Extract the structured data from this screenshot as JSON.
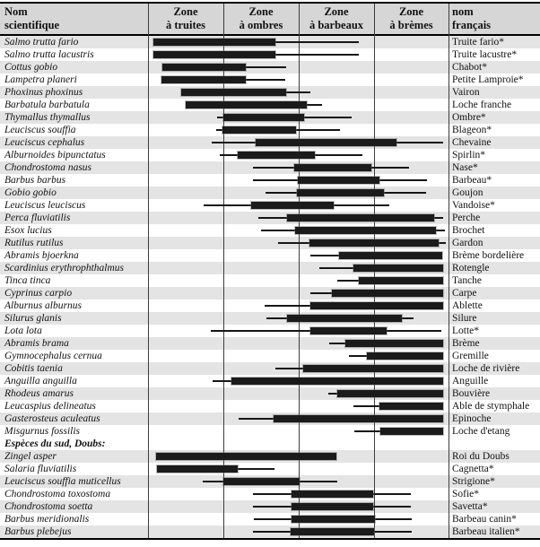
{
  "header": {
    "scientific": {
      "line1": "Nom",
      "line2": "scientifique"
    },
    "zones": [
      {
        "line1": "Zone",
        "line2": "à truites"
      },
      {
        "line1": "Zone",
        "line2": "à ombres"
      },
      {
        "line1": "Zone",
        "line2": "à barbeaux"
      },
      {
        "line1": "Zone",
        "line2": "à brèmes"
      }
    ],
    "french": {
      "line1": "nom",
      "line2": "français"
    }
  },
  "colors": {
    "row_shade": "#e4e4e4",
    "header_bg": "#d6d6d6",
    "bar": "#1b1b1b",
    "gridline": "#3d3d3d"
  },
  "chart_data": {
    "type": "bar",
    "subtype": "horizontal-range-bars-with-whiskers",
    "title": "",
    "xlabel": "",
    "ylabel": "",
    "categories": [
      "Zone à truites",
      "Zone à ombres",
      "Zone à barbeaux",
      "Zone à brèmes"
    ],
    "x_axis": {
      "min": 0,
      "max": 4,
      "units": "zone units: 0 = start of Zone à truites, 1 zone = 1 unit"
    },
    "legend": "none",
    "grid": "vertical zone-boundary lines at 0,1,2,3,4",
    "rows": [
      {
        "sci": "Salmo trutta fario",
        "fr": "Truite fario*",
        "whisker": [
          0.07,
          2.81
        ],
        "bar": [
          0.07,
          1.7
        ]
      },
      {
        "sci": "Salmo trutta lacustris",
        "fr": "Truite lacustre*",
        "whisker": [
          0.07,
          2.81
        ],
        "bar": [
          0.07,
          1.7
        ]
      },
      {
        "sci": "Cottus gobio",
        "fr": "Chabot*",
        "whisker": [
          0.19,
          1.84
        ],
        "bar": [
          0.19,
          1.3
        ]
      },
      {
        "sci": "Lampetra planeri",
        "fr": "Petite Lamproie*",
        "whisker": [
          0.18,
          1.83
        ],
        "bar": [
          0.18,
          1.3
        ]
      },
      {
        "sci": "Phoxinus phoxinus",
        "fr": "Vairon",
        "whisker": [
          0.44,
          2.16
        ],
        "bar": [
          0.44,
          1.84
        ]
      },
      {
        "sci": "Barbatula barbatula",
        "fr": "Loche franche",
        "whisker": [
          0.5,
          2.32
        ],
        "bar": [
          0.5,
          2.11
        ]
      },
      {
        "sci": "Thymallus thymallus",
        "fr": "Ombre*",
        "whisker": [
          0.92,
          2.71
        ],
        "bar": [
          1.0,
          2.08
        ]
      },
      {
        "sci": "Leuciscus souffia",
        "fr": "Blageon*",
        "whisker": [
          0.91,
          2.56
        ],
        "bar": [
          0.99,
          1.97
        ]
      },
      {
        "sci": "Leuciscus cephalus",
        "fr": "Chevaine",
        "whisker": [
          0.85,
          3.93
        ],
        "bar": [
          1.43,
          3.31
        ]
      },
      {
        "sci": "Alburnoides bipunctatus",
        "fr": "Spirlin*",
        "whisker": [
          0.96,
          2.85
        ],
        "bar": [
          1.19,
          2.22
        ]
      },
      {
        "sci": "Chondrostoma nasus",
        "fr": "Nase*",
        "whisker": [
          1.4,
          3.48
        ],
        "bar": [
          1.95,
          2.97
        ]
      },
      {
        "sci": "Barbus barbus",
        "fr": "Barbeau*",
        "whisker": [
          1.4,
          3.71
        ],
        "bar": [
          1.99,
          3.08
        ]
      },
      {
        "sci": "Gobio gobio",
        "fr": "Goujon",
        "whisker": [
          1.56,
          3.7
        ],
        "bar": [
          1.98,
          3.14
        ]
      },
      {
        "sci": "Leuciscus leuciscus",
        "fr": "Vandoise*",
        "whisker": [
          0.74,
          3.21
        ],
        "bar": [
          1.37,
          2.47
        ]
      },
      {
        "sci": "Perca fluviatilis",
        "fr": "Perche",
        "whisker": [
          1.47,
          3.93
        ],
        "bar": [
          1.85,
          3.81
        ]
      },
      {
        "sci": "Esox lucius",
        "fr": "Brochet",
        "whisker": [
          1.5,
          3.95
        ],
        "bar": [
          1.96,
          3.84
        ]
      },
      {
        "sci": "Rutilus rutilus",
        "fr": "Gardon",
        "whisker": [
          1.73,
          3.96
        ],
        "bar": [
          2.15,
          3.87
        ]
      },
      {
        "sci": "Abramis bjoerkna",
        "fr": "Brème bordelière",
        "whisker": [
          2.16,
          3.92
        ],
        "bar": [
          2.54,
          3.92
        ]
      },
      {
        "sci": "Scardinius erythrophthalmus",
        "fr": "Rotengle",
        "whisker": [
          2.28,
          3.93
        ],
        "bar": [
          2.73,
          3.93
        ]
      },
      {
        "sci": "Tinca tinca",
        "fr": "Tanche",
        "whisker": [
          2.52,
          3.93
        ],
        "bar": [
          2.81,
          3.93
        ]
      },
      {
        "sci": "Cyprinus carpio",
        "fr": "Carpe",
        "whisker": [
          2.16,
          3.93
        ],
        "bar": [
          2.45,
          3.93
        ]
      },
      {
        "sci": "Alburnus alburnus",
        "fr": "Ablette",
        "whisker": [
          1.55,
          3.93
        ],
        "bar": [
          2.16,
          3.93
        ]
      },
      {
        "sci": "Silurus glanis",
        "fr": "Silure",
        "whisker": [
          1.58,
          3.53
        ],
        "bar": [
          1.85,
          3.38
        ]
      },
      {
        "sci": "Lota lota",
        "fr": "Lotte*",
        "whisker": [
          0.84,
          3.9
        ],
        "bar": [
          2.16,
          3.18
        ]
      },
      {
        "sci": "Abramis brama",
        "fr": "Brème",
        "whisker": [
          2.41,
          3.93
        ],
        "bar": [
          2.63,
          3.93
        ]
      },
      {
        "sci": "Gymnocephalus cernua",
        "fr": "Gremille",
        "whisker": [
          2.67,
          3.93
        ],
        "bar": [
          2.91,
          3.93
        ]
      },
      {
        "sci": "Cobitis taenia",
        "fr": "Loche de rivière",
        "whisker": [
          1.7,
          3.93
        ],
        "bar": [
          2.07,
          3.93
        ]
      },
      {
        "sci": "Anguilla anguilla",
        "fr": "Anguille",
        "whisker": [
          0.86,
          3.93
        ],
        "bar": [
          1.11,
          3.93
        ]
      },
      {
        "sci": "Rhodeus amarus",
        "fr": "Bouvière",
        "whisker": [
          2.4,
          3.93
        ],
        "bar": [
          2.52,
          3.93
        ]
      },
      {
        "sci": "Leucaspius delineatus",
        "fr": "Able de stymphale",
        "whisker": [
          2.73,
          3.93
        ],
        "bar": [
          3.08,
          3.93
        ]
      },
      {
        "sci": "Gasterosteus aculeatus",
        "fr": "Epinoche",
        "whisker": [
          1.21,
          3.93
        ],
        "bar": [
          1.67,
          3.93
        ]
      },
      {
        "sci": "Misgurnus fossilis",
        "fr": "Loche d'etang",
        "whisker": [
          2.75,
          3.93
        ],
        "bar": [
          3.09,
          3.93
        ]
      },
      {
        "section": "Espèces du sud, Doubs:"
      },
      {
        "sci": "Zingel asper",
        "fr": "Roi du Doubs",
        "whisker": [
          0.11,
          2.51
        ],
        "bar": [
          0.11,
          2.51
        ]
      },
      {
        "sci": "Salaria fluviatilis",
        "fr": "Cagnetta*",
        "whisker": [
          0.12,
          1.68
        ],
        "bar": [
          0.12,
          1.19
        ]
      },
      {
        "sci": "Leuciscus souffia muticellus",
        "fr": "Strigione*",
        "whisker": [
          0.73,
          2.52
        ],
        "bar": [
          1.0,
          2.02
        ]
      },
      {
        "sci": "Chondrostoma toxostoma",
        "fr": "Sofie*",
        "whisker": [
          1.4,
          3.5
        ],
        "bar": [
          1.91,
          3.0
        ]
      },
      {
        "sci": "Chondrostoma soetta",
        "fr": "Savetta*",
        "whisker": [
          1.4,
          3.5
        ],
        "bar": [
          1.91,
          3.0
        ]
      },
      {
        "sci": "Barbus meridionalis",
        "fr": "Barbeau canin*",
        "whisker": [
          1.41,
          3.51
        ],
        "bar": [
          1.91,
          3.02
        ]
      },
      {
        "sci": "Barbus plebejus",
        "fr": "Barbeau italien*",
        "whisker": [
          1.4,
          3.51
        ],
        "bar": [
          1.9,
          3.01
        ]
      }
    ]
  }
}
